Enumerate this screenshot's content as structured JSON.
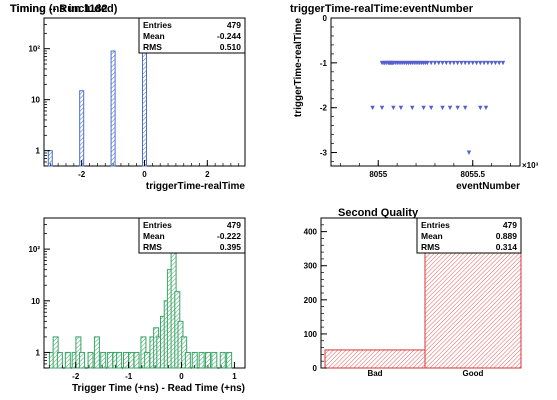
{
  "chart_data": [
    {
      "type": "bar",
      "title": "Timing -- Run 1182",
      "xlabel": "triggerTime-realTime",
      "ylabel": "",
      "xlim": [
        -3.2,
        3.2
      ],
      "ylim": [
        0.5,
        400
      ],
      "yscale": "log",
      "xticks": [
        "-2",
        "0",
        "2"
      ],
      "yticks": [
        "1",
        "10",
        "10²"
      ],
      "color": "#4a6fd0",
      "bins": [
        {
          "x": -3,
          "value": 1
        },
        {
          "x": -2,
          "value": 15
        },
        {
          "x": -1,
          "value": 90
        },
        {
          "x": 0,
          "value": 370
        }
      ],
      "stats": [
        {
          "label": "Entries",
          "value": "479"
        },
        {
          "label": "Mean",
          "value": "-0.244"
        },
        {
          "label": "RMS",
          "value": "0.510"
        }
      ]
    },
    {
      "type": "scatter",
      "title": "triggerTime-realTime:eventNumber",
      "xlabel": "eventNumber",
      "ylabel": "triggerTime-realTime",
      "xlim": [
        8054.75,
        8055.75
      ],
      "ylim": [
        -3.3,
        0
      ],
      "xticks": [
        "8055",
        "8055.5"
      ],
      "yticks": [
        "0",
        "-1",
        "-2",
        "-3"
      ],
      "x_exponent": "×10³",
      "color": "#5560d0",
      "points_by_level": [
        {
          "y": -1,
          "x": [
            8055.02,
            8055.03,
            8055.035,
            8055.045,
            8055.055,
            8055.06,
            8055.065,
            8055.07,
            8055.075,
            8055.08,
            8055.09,
            8055.1,
            8055.11,
            8055.12,
            8055.13,
            8055.14,
            8055.15,
            8055.16,
            8055.17,
            8055.18,
            8055.19,
            8055.2,
            8055.21,
            8055.22,
            8055.23,
            8055.24,
            8055.25,
            8055.26,
            8055.28,
            8055.3,
            8055.32,
            8055.34,
            8055.36,
            8055.38,
            8055.4,
            8055.42,
            8055.44,
            8055.46,
            8055.48,
            8055.5,
            8055.52,
            8055.54,
            8055.56,
            8055.58,
            8055.6,
            8055.62,
            8055.64,
            8055.66
          ]
        },
        {
          "y": -2,
          "x": [
            8054.97,
            8055.02,
            8055.08,
            8055.12,
            8055.18,
            8055.24,
            8055.28,
            8055.34,
            8055.38,
            8055.42,
            8055.46,
            8055.54,
            8055.57
          ]
        },
        {
          "y": -3,
          "x": [
            8055.48
          ]
        }
      ]
    },
    {
      "type": "bar",
      "title": "Timing (ns included)",
      "xlabel": "Trigger Time (+ns) - Read Time (+ns)",
      "ylabel": "",
      "xlim": [
        -2.6,
        1.2
      ],
      "ylim": [
        0.5,
        400
      ],
      "yscale": "log",
      "xticks": [
        "-2",
        "-1",
        "0",
        "1"
      ],
      "yticks": [
        "1",
        "10",
        "10²"
      ],
      "color": "#3aa566",
      "bins": [
        {
          "x": -2.45,
          "value": 1
        },
        {
          "x": -2.38,
          "value": 2
        },
        {
          "x": -2.3,
          "value": 1
        },
        {
          "x": -2.15,
          "value": 1
        },
        {
          "x": -2.02,
          "value": 1
        },
        {
          "x": -1.95,
          "value": 2
        },
        {
          "x": -1.88,
          "value": 1
        },
        {
          "x": -1.72,
          "value": 1
        },
        {
          "x": -1.6,
          "value": 2
        },
        {
          "x": -1.48,
          "value": 1
        },
        {
          "x": -1.35,
          "value": 1
        },
        {
          "x": -1.25,
          "value": 1
        },
        {
          "x": -1.18,
          "value": 1
        },
        {
          "x": -1.05,
          "value": 1
        },
        {
          "x": -0.95,
          "value": 1
        },
        {
          "x": -0.85,
          "value": 1
        },
        {
          "x": -0.72,
          "value": 2
        },
        {
          "x": -0.65,
          "value": 1
        },
        {
          "x": -0.55,
          "value": 2
        },
        {
          "x": -0.48,
          "value": 3
        },
        {
          "x": -0.42,
          "value": 2
        },
        {
          "x": -0.35,
          "value": 5
        },
        {
          "x": -0.28,
          "value": 10
        },
        {
          "x": -0.22,
          "value": 40
        },
        {
          "x": -0.15,
          "value": 380
        },
        {
          "x": -0.08,
          "value": 15
        },
        {
          "x": -0.02,
          "value": 4
        },
        {
          "x": 0.05,
          "value": 2
        },
        {
          "x": 0.12,
          "value": 1
        },
        {
          "x": 0.25,
          "value": 1
        },
        {
          "x": 0.38,
          "value": 1
        },
        {
          "x": 0.5,
          "value": 1
        },
        {
          "x": 0.62,
          "value": 1
        },
        {
          "x": 0.78,
          "value": 1
        },
        {
          "x": 0.9,
          "value": 1
        }
      ],
      "stats": [
        {
          "label": "Entries",
          "value": "479"
        },
        {
          "label": "Mean",
          "value": "-0.222"
        },
        {
          "label": "RMS",
          "value": "0.395"
        }
      ]
    },
    {
      "type": "bar",
      "title": "Second Quality",
      "xlabel": "",
      "ylabel": "",
      "categories": [
        "Bad",
        "Good"
      ],
      "values": [
        53,
        426
      ],
      "ylim": [
        0,
        440
      ],
      "yticks": [
        "0",
        "100",
        "200",
        "300",
        "400"
      ],
      "color": "#dd3333",
      "stats": [
        {
          "label": "Entries",
          "value": "479"
        },
        {
          "label": "Mean",
          "value": "0.889"
        },
        {
          "label": "RMS",
          "value": "0.314"
        }
      ]
    }
  ]
}
